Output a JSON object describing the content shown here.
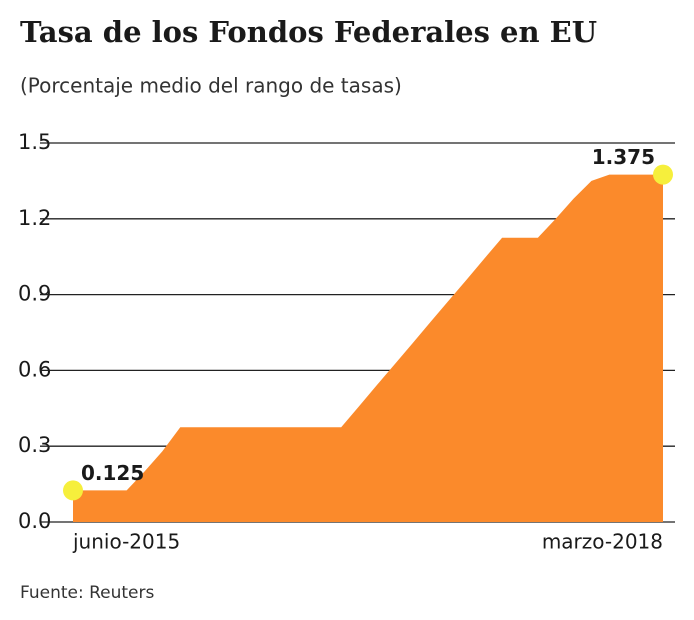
{
  "chart_data": {
    "type": "area",
    "title": "Tasa de los Fondos Federales en EU",
    "subtitle": "(Porcentaje medio del rango de tasas)",
    "source": "Fuente: Reuters",
    "categories": [
      "junio-2015",
      null,
      null,
      null,
      null,
      null,
      null,
      null,
      null,
      null,
      null,
      null,
      null,
      null,
      null,
      null,
      null,
      null,
      null,
      null,
      null,
      null,
      null,
      null,
      null,
      null,
      null,
      null,
      null,
      null,
      null,
      null,
      null,
      "marzo-2018"
    ],
    "values": [
      0.125,
      0.125,
      0.125,
      0.125,
      0.2,
      0.28,
      0.375,
      0.375,
      0.375,
      0.375,
      0.375,
      0.375,
      0.375,
      0.375,
      0.375,
      0.375,
      0.458,
      0.542,
      0.625,
      0.708,
      0.792,
      0.875,
      0.958,
      1.042,
      1.125,
      1.125,
      1.125,
      1.2,
      1.28,
      1.35,
      1.375,
      1.375,
      1.375,
      1.375
    ],
    "color": "#fb8a2b",
    "highlight_color": "#f6ef3c",
    "ylim": [
      0,
      1.5
    ],
    "yticks": [
      {
        "value": 0,
        "label": "0.0"
      },
      0.3,
      0.6,
      0.9,
      1.2,
      1.5
    ],
    "grid": true
  }
}
